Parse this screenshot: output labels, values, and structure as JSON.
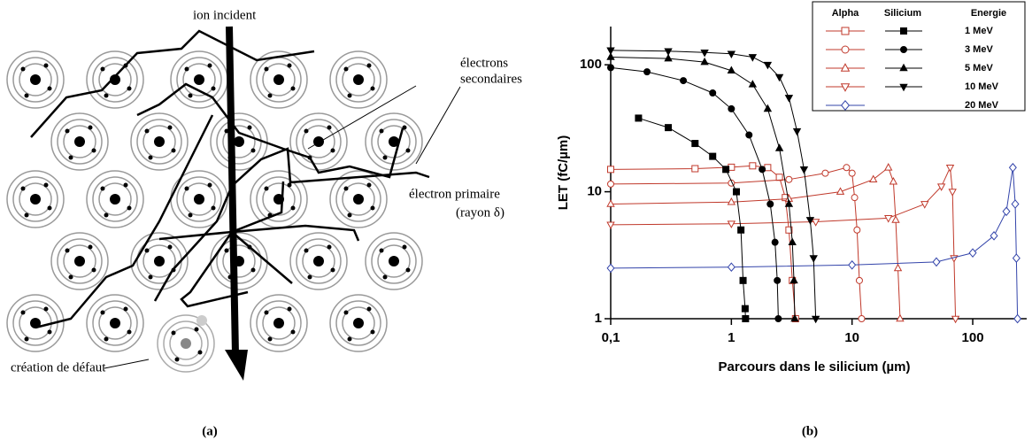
{
  "diagram": {
    "labels": [
      "ion incident",
      "électrons",
      "secondaires",
      "électron primaire",
      "(rayon δ)",
      "création de défaut"
    ]
  },
  "captions": [
    "(a)",
    "(b)"
  ],
  "chart_data": {
    "type": "line",
    "xlabel": "Parcours dans le silicium  (µm)",
    "ylabel": "LET  (fC/µm)",
    "log_x": true,
    "log_y": true,
    "xlim": [
      0.1,
      280
    ],
    "ylim": [
      1,
      200
    ],
    "xticks": [
      {
        "value": 0.1,
        "label": "0,1"
      },
      1,
      10,
      100
    ],
    "yticks": [
      1,
      10,
      100
    ],
    "legend_headers": [
      "Alpha",
      "Silicium",
      "Energie"
    ],
    "legend": "upper right",
    "series": [
      {
        "name": "1 MeV",
        "color": "#c0392b",
        "marker": "square",
        "filled": false,
        "x": [
          0.1,
          0.5,
          1.0,
          1.5,
          2.0,
          2.5,
          2.8,
          3.0,
          3.2,
          3.4
        ],
        "values": [
          15,
          15.2,
          15.6,
          16,
          15.5,
          13,
          9,
          5,
          2,
          1
        ]
      },
      {
        "name": "3 MeV",
        "color": "#c0392b",
        "marker": "circle",
        "filled": false,
        "x": [
          0.1,
          1,
          3,
          6,
          9,
          10,
          10.5,
          11,
          11.5,
          12
        ],
        "values": [
          11.5,
          11.7,
          12.5,
          14,
          15.5,
          14,
          9,
          5,
          2,
          1
        ]
      },
      {
        "name": "5 MeV",
        "color": "#c0392b",
        "marker": "triangle-up",
        "filled": false,
        "x": [
          0.1,
          1,
          3,
          8,
          15,
          20,
          22,
          23,
          24,
          25
        ],
        "values": [
          8,
          8.3,
          8.8,
          10,
          12.5,
          15.5,
          12,
          6,
          2.5,
          1
        ]
      },
      {
        "name": "10 MeV",
        "color": "#c0392b",
        "marker": "triangle-down",
        "filled": false,
        "x": [
          0.1,
          1,
          5,
          20,
          40,
          55,
          65,
          68,
          70,
          72
        ],
        "values": [
          5.5,
          5.6,
          5.8,
          6.2,
          8,
          11,
          15.5,
          10,
          3,
          1
        ]
      },
      {
        "name": "20 MeV",
        "color": "#3344aa",
        "marker": "diamond",
        "filled": false,
        "x": [
          0.1,
          1,
          10,
          50,
          100,
          150,
          190,
          215,
          225,
          230,
          235
        ],
        "values": [
          2.5,
          2.55,
          2.65,
          2.8,
          3.3,
          4.5,
          7,
          15.5,
          8,
          3,
          1
        ]
      },
      {
        "name": "1 MeV",
        "color": "#000000",
        "marker": "square",
        "filled": true,
        "x": [
          0.17,
          0.3,
          0.5,
          0.7,
          0.9,
          1.1,
          1.2,
          1.25,
          1.3,
          1.31
        ],
        "values": [
          38,
          32,
          24,
          19,
          15,
          10,
          5,
          2,
          1.2,
          1
        ]
      },
      {
        "name": "3 MeV",
        "color": "#000000",
        "marker": "circle",
        "filled": true,
        "x": [
          0.1,
          0.2,
          0.4,
          0.7,
          1.0,
          1.4,
          1.8,
          2.1,
          2.3,
          2.4,
          2.45
        ],
        "values": [
          95,
          88,
          75,
          60,
          45,
          28,
          15,
          8,
          4,
          2,
          1
        ]
      },
      {
        "name": "5 MeV",
        "color": "#000000",
        "marker": "triangle-up",
        "filled": true,
        "x": [
          0.1,
          0.3,
          0.6,
          1.0,
          1.5,
          2.0,
          2.5,
          3.0,
          3.2,
          3.3,
          3.35
        ],
        "values": [
          115,
          112,
          105,
          90,
          70,
          45,
          22,
          8,
          4,
          2,
          1
        ]
      },
      {
        "name": "10 MeV",
        "color": "#000000",
        "marker": "triangle-down",
        "filled": true,
        "x": [
          0.1,
          0.3,
          0.6,
          1.0,
          1.5,
          2.0,
          2.5,
          3.0,
          3.5,
          4.0,
          4.5,
          4.8,
          5.0
        ],
        "values": [
          130,
          128,
          125,
          122,
          115,
          100,
          80,
          55,
          30,
          15,
          6,
          3,
          1
        ]
      }
    ]
  }
}
